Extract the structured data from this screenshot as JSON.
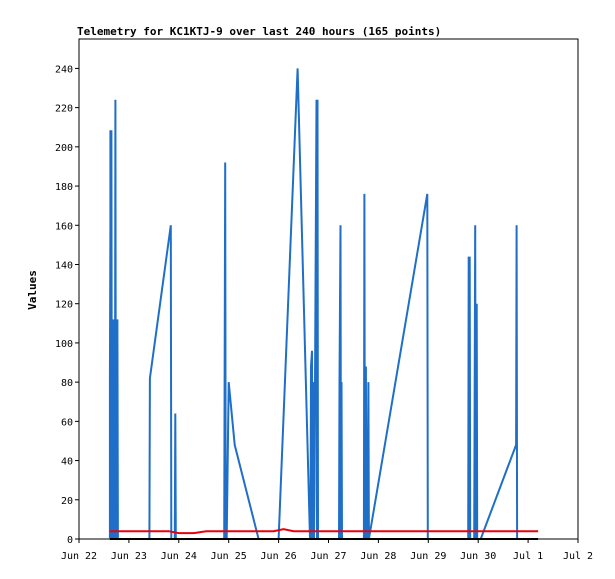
{
  "chart_data": {
    "type": "line",
    "title": "Telemetry for KC1KTJ-9 over last 240 hours (165 points)",
    "xlabel": "",
    "ylabel": "Values",
    "ylim": [
      0,
      255
    ],
    "xlim": [
      0,
      10
    ],
    "yticks": [
      0,
      20,
      40,
      60,
      80,
      100,
      120,
      140,
      160,
      180,
      200,
      220,
      240
    ],
    "xticks": [
      {
        "v": 0,
        "label": "Jun 22"
      },
      {
        "v": 1,
        "label": "Jun 23"
      },
      {
        "v": 2,
        "label": "Jun 24"
      },
      {
        "v": 3,
        "label": "Jun 25"
      },
      {
        "v": 4,
        "label": "Jun 26"
      },
      {
        "v": 5,
        "label": "Jun 27"
      },
      {
        "v": 6,
        "label": "Jun 28"
      },
      {
        "v": 7,
        "label": "Jun 29"
      },
      {
        "v": 8,
        "label": "Jun 30"
      },
      {
        "v": 9,
        "label": "Jul 1"
      },
      {
        "v": 10,
        "label": "Jul 2"
      }
    ],
    "grid": false,
    "legend": "none",
    "series": [
      {
        "color": "#1f6fc8",
        "points": [
          [
            0.62,
            0
          ],
          [
            0.62,
            80
          ],
          [
            0.63,
            160
          ],
          [
            0.63,
            208
          ],
          [
            0.64,
            208
          ],
          [
            0.65,
            208
          ],
          [
            0.66,
            0
          ],
          [
            0.67,
            112
          ],
          [
            0.68,
            0
          ],
          [
            0.69,
            8
          ],
          [
            0.7,
            0
          ],
          [
            0.71,
            112
          ],
          [
            0.72,
            0
          ],
          [
            0.73,
            224
          ],
          [
            0.74,
            0
          ],
          [
            0.76,
            0
          ],
          [
            0.77,
            112
          ],
          [
            0.78,
            0
          ],
          [
            1.41,
            0
          ],
          [
            1.42,
            82
          ],
          [
            1.84,
            160
          ],
          [
            1.85,
            0
          ],
          [
            1.92,
            0
          ],
          [
            1.93,
            64
          ],
          [
            1.94,
            0
          ],
          [
            2.91,
            0
          ],
          [
            2.92,
            96
          ],
          [
            2.93,
            192
          ],
          [
            2.94,
            0
          ],
          [
            2.95,
            24
          ],
          [
            2.96,
            0
          ],
          [
            3.0,
            80
          ],
          [
            3.12,
            48
          ],
          [
            3.6,
            0
          ],
          [
            3.99,
            0
          ],
          [
            4.0,
            0
          ],
          [
            4.38,
            240
          ],
          [
            4.63,
            0
          ],
          [
            4.64,
            0
          ],
          [
            4.65,
            88
          ],
          [
            4.67,
            96
          ],
          [
            4.68,
            0
          ],
          [
            4.7,
            80
          ],
          [
            4.71,
            0
          ],
          [
            4.72,
            30
          ],
          [
            4.76,
            224
          ],
          [
            4.77,
            0
          ],
          [
            4.78,
            224
          ],
          [
            4.79,
            0
          ],
          [
            5.21,
            0
          ],
          [
            5.22,
            80
          ],
          [
            5.24,
            160
          ],
          [
            5.25,
            0
          ],
          [
            5.26,
            80
          ],
          [
            5.27,
            0
          ],
          [
            5.71,
            0
          ],
          [
            5.72,
            176
          ],
          [
            5.73,
            0
          ],
          [
            5.75,
            88
          ],
          [
            5.76,
            0
          ],
          [
            5.78,
            0
          ],
          [
            5.8,
            80
          ],
          [
            5.81,
            0
          ],
          [
            6.98,
            176
          ],
          [
            6.99,
            0
          ],
          [
            7.8,
            0
          ],
          [
            7.81,
            144
          ],
          [
            7.82,
            0
          ],
          [
            7.83,
            144
          ],
          [
            7.84,
            0
          ],
          [
            7.92,
            0
          ],
          [
            7.94,
            160
          ],
          [
            7.95,
            0
          ],
          [
            7.96,
            40
          ],
          [
            7.97,
            120
          ],
          [
            7.98,
            0
          ],
          [
            8.05,
            0
          ],
          [
            8.76,
            48
          ],
          [
            8.77,
            160
          ],
          [
            8.78,
            0
          ]
        ]
      },
      {
        "color": "#e8000b",
        "points": [
          [
            0.62,
            4
          ],
          [
            1.0,
            4
          ],
          [
            1.5,
            4
          ],
          [
            1.8,
            4
          ],
          [
            2.0,
            3
          ],
          [
            2.3,
            3
          ],
          [
            2.55,
            4
          ],
          [
            2.9,
            4
          ],
          [
            3.2,
            4
          ],
          [
            3.6,
            4
          ],
          [
            3.9,
            4
          ],
          [
            4.1,
            5
          ],
          [
            4.3,
            4
          ],
          [
            5.0,
            4
          ],
          [
            6.0,
            4
          ],
          [
            7.0,
            4
          ],
          [
            8.0,
            4
          ],
          [
            8.5,
            4
          ],
          [
            9.0,
            4
          ],
          [
            9.2,
            4
          ]
        ]
      },
      {
        "color": "#000000",
        "points": [
          [
            0.62,
            0
          ],
          [
            3.0,
            0
          ],
          [
            6.0,
            0
          ],
          [
            9.2,
            0
          ]
        ]
      }
    ]
  }
}
